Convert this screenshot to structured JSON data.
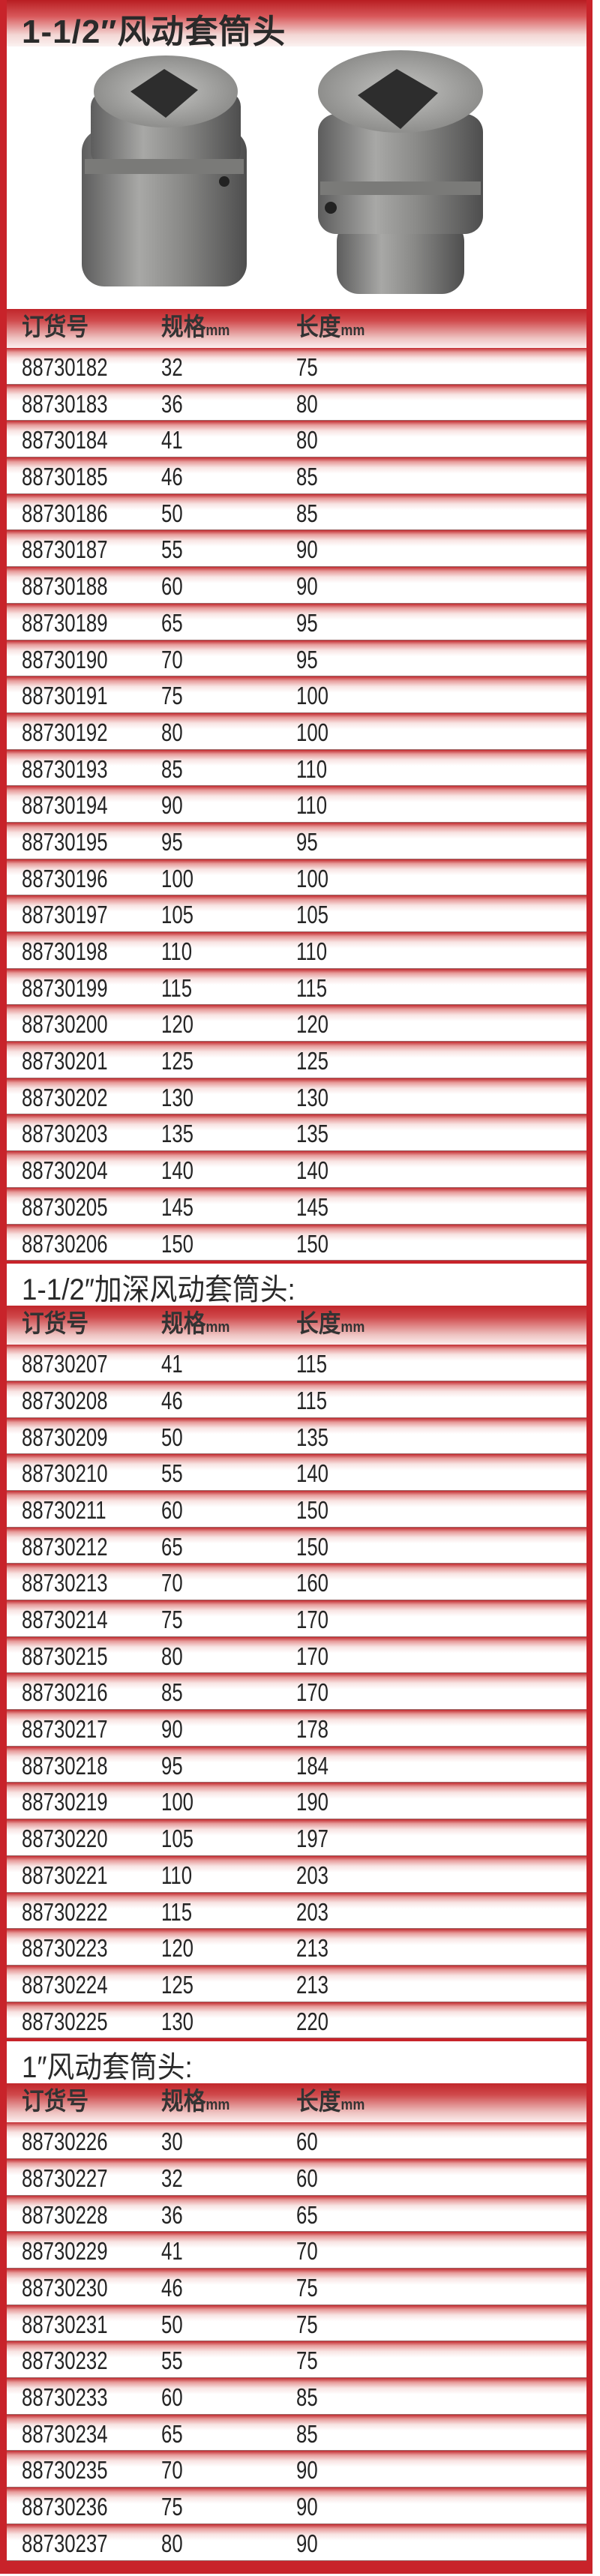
{
  "colors": {
    "frame": "#c8232a",
    "row_shade": "#c22a2f"
  },
  "image": {
    "subject": "two impact sockets (steel grey)"
  },
  "sections": [
    {
      "title": "1-1/2″风动套筒头",
      "headers": {
        "order_no": "订货号",
        "size": "规格",
        "size_unit": "mm",
        "length": "长度",
        "length_unit": "mm"
      },
      "rows": [
        [
          "88730182",
          "32",
          "75"
        ],
        [
          "88730183",
          "36",
          "80"
        ],
        [
          "88730184",
          "41",
          "80"
        ],
        [
          "88730185",
          "46",
          "85"
        ],
        [
          "88730186",
          "50",
          "85"
        ],
        [
          "88730187",
          "55",
          "90"
        ],
        [
          "88730188",
          "60",
          "90"
        ],
        [
          "88730189",
          "65",
          "95"
        ],
        [
          "88730190",
          "70",
          "95"
        ],
        [
          "88730191",
          "75",
          "100"
        ],
        [
          "88730192",
          "80",
          "100"
        ],
        [
          "88730193",
          "85",
          "110"
        ],
        [
          "88730194",
          "90",
          "110"
        ],
        [
          "88730195",
          "95",
          "95"
        ],
        [
          "88730196",
          "100",
          "100"
        ],
        [
          "88730197",
          "105",
          "105"
        ],
        [
          "88730198",
          "110",
          "110"
        ],
        [
          "88730199",
          "115",
          "115"
        ],
        [
          "88730200",
          "120",
          "120"
        ],
        [
          "88730201",
          "125",
          "125"
        ],
        [
          "88730202",
          "130",
          "130"
        ],
        [
          "88730203",
          "135",
          "135"
        ],
        [
          "88730204",
          "140",
          "140"
        ],
        [
          "88730205",
          "145",
          "145"
        ],
        [
          "88730206",
          "150",
          "150"
        ]
      ]
    },
    {
      "title": "1-1/2″加深风动套筒头:",
      "headers": {
        "order_no": "订货号",
        "size": "规格",
        "size_unit": "mm",
        "length": "长度",
        "length_unit": "mm"
      },
      "rows": [
        [
          "88730207",
          "41",
          "115"
        ],
        [
          "88730208",
          "46",
          "115"
        ],
        [
          "88730209",
          "50",
          "135"
        ],
        [
          "88730210",
          "55",
          "140"
        ],
        [
          "88730211",
          "60",
          "150"
        ],
        [
          "88730212",
          "65",
          "150"
        ],
        [
          "88730213",
          "70",
          "160"
        ],
        [
          "88730214",
          "75",
          "170"
        ],
        [
          "88730215",
          "80",
          "170"
        ],
        [
          "88730216",
          "85",
          "170"
        ],
        [
          "88730217",
          "90",
          "178"
        ],
        [
          "88730218",
          "95",
          "184"
        ],
        [
          "88730219",
          "100",
          "190"
        ],
        [
          "88730220",
          "105",
          "197"
        ],
        [
          "88730221",
          "110",
          "203"
        ],
        [
          "88730222",
          "115",
          "203"
        ],
        [
          "88730223",
          "120",
          "213"
        ],
        [
          "88730224",
          "125",
          "213"
        ],
        [
          "88730225",
          "130",
          "220"
        ]
      ]
    },
    {
      "title": "1″风动套筒头:",
      "headers": {
        "order_no": "订货号",
        "size": "规格",
        "size_unit": "mm",
        "length": "长度",
        "length_unit": "mm"
      },
      "rows": [
        [
          "88730226",
          "30",
          "60"
        ],
        [
          "88730227",
          "32",
          "60"
        ],
        [
          "88730228",
          "36",
          "65"
        ],
        [
          "88730229",
          "41",
          "70"
        ],
        [
          "88730230",
          "46",
          "75"
        ],
        [
          "88730231",
          "50",
          "75"
        ],
        [
          "88730232",
          "55",
          "75"
        ],
        [
          "88730233",
          "60",
          "85"
        ],
        [
          "88730234",
          "65",
          "85"
        ],
        [
          "88730235",
          "70",
          "90"
        ],
        [
          "88730236",
          "75",
          "90"
        ],
        [
          "88730237",
          "80",
          "90"
        ]
      ]
    }
  ]
}
